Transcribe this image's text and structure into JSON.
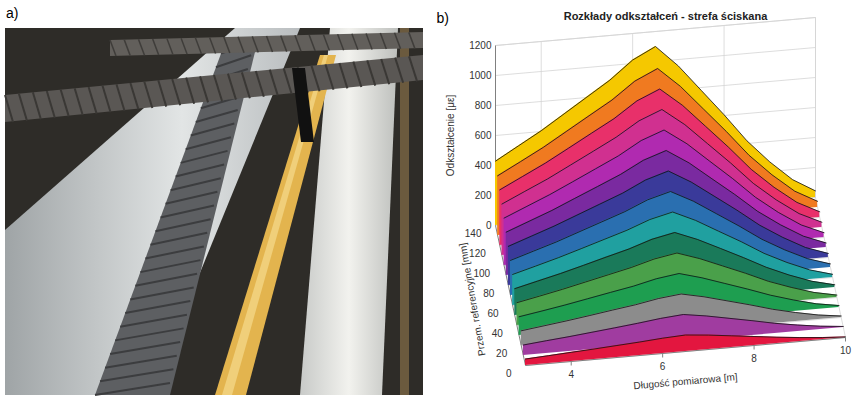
{
  "photo": {
    "panel_label": "a)"
  },
  "chart_data": {
    "type": "waterfall3d",
    "panel_label": "b)",
    "title": "Rozkłady odkształceń - strefa ściskana",
    "ylabel": "Odkształcenie [με]",
    "zlabel": "Przem. referencyjne [mm]",
    "xlabel": "Długość pomiarowa [m]",
    "grid": true,
    "xlim": [
      3,
      10
    ],
    "xticks": [
      4,
      6,
      8,
      10
    ],
    "ylim": [
      0,
      1200
    ],
    "yticks": [
      0,
      200,
      400,
      600,
      800,
      1000,
      1200
    ],
    "zlim": [
      0,
      140
    ],
    "zticks": [
      0,
      20,
      40,
      60,
      80,
      100,
      120,
      140
    ],
    "x": [
      3,
      3.5,
      4,
      4.5,
      5,
      5.5,
      6,
      6.5,
      7,
      7.5,
      8,
      8.5,
      9,
      9.5,
      10
    ],
    "series": [
      {
        "z": 0,
        "color": "#e3163f",
        "values": [
          43,
          52,
          61,
          70,
          80,
          90,
          102,
          110,
          96,
          78,
          60,
          42,
          26,
          13,
          4
        ]
      },
      {
        "z": 10,
        "color": "#a03ca0",
        "values": [
          70,
          85,
          99,
          115,
          131,
          148,
          167,
          180,
          157,
          128,
          99,
          68,
          43,
          22,
          7
        ]
      },
      {
        "z": 20,
        "color": "#8c8c8c",
        "values": [
          98,
          118,
          138,
          160,
          183,
          205,
          233,
          250,
          218,
          178,
          138,
          95,
          60,
          30,
          10
        ]
      },
      {
        "z": 30,
        "color": "#1e9e50",
        "values": [
          125,
          150,
          176,
          205,
          234,
          262,
          298,
          320,
          278,
          227,
          176,
          122,
          77,
          38,
          13
        ]
      },
      {
        "z": 40,
        "color": "#4aa04a",
        "values": [
          152,
          183,
          215,
          250,
          285,
          320,
          363,
          390,
          339,
          277,
          215,
          148,
          94,
          47,
          16
        ]
      },
      {
        "z": 50,
        "color": "#1a7a5a",
        "values": [
          179,
          216,
          253,
          294,
          336,
          377,
          428,
          460,
          400,
          327,
          253,
          175,
          110,
          55,
          18
        ]
      },
      {
        "z": 60,
        "color": "#20a0a0",
        "values": [
          207,
          249,
          292,
          339,
          387,
          435,
          493,
          530,
          461,
          376,
          292,
          201,
          127,
          64,
          21
        ]
      },
      {
        "z": 70,
        "color": "#2a6fb0",
        "values": [
          234,
          282,
          330,
          384,
          438,
          492,
          558,
          600,
          522,
          426,
          330,
          228,
          144,
          72,
          24
        ]
      },
      {
        "z": 80,
        "color": "#3a3a9a",
        "values": [
          261,
          315,
          369,
          429,
          489,
          549,
          623,
          670,
          583,
          476,
          369,
          255,
          161,
          80,
          27
        ]
      },
      {
        "z": 90,
        "color": "#7a2aa0",
        "values": [
          289,
          348,
          407,
          474,
          540,
          607,
          688,
          740,
          644,
          525,
          407,
          281,
          178,
          89,
          30
        ]
      },
      {
        "z": 100,
        "color": "#b02ab0",
        "values": [
          316,
          381,
          446,
          518,
          591,
          664,
          753,
          810,
          705,
          575,
          446,
          308,
          194,
          97,
          32
        ]
      },
      {
        "z": 110,
        "color": "#d03090",
        "values": [
          343,
          414,
          484,
          563,
          642,
          722,
          818,
          880,
          766,
          625,
          484,
          334,
          211,
          106,
          35
        ]
      },
      {
        "z": 120,
        "color": "#e8306a",
        "values": [
          371,
          447,
          523,
          608,
          694,
          779,
          884,
          950,
          827,
          675,
          523,
          361,
          228,
          114,
          38
        ]
      },
      {
        "z": 130,
        "color": "#f07a20",
        "values": [
          398,
          479,
          561,
          653,
          745,
          836,
          949,
          1020,
          887,
          724,
          561,
          388,
          245,
          122,
          41
        ]
      },
      {
        "z": 140,
        "color": "#f5c800",
        "values": [
          429,
          517,
          605,
          704,
          803,
          902,
          1023,
          1100,
          957,
          781,
          605,
          418,
          264,
          132,
          44
        ]
      }
    ]
  }
}
